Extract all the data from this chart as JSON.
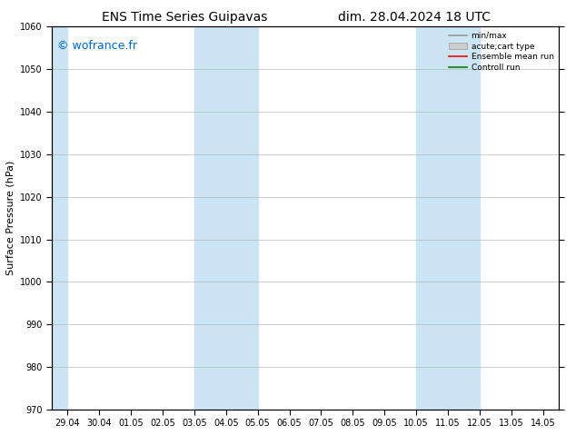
{
  "title_left": "ENS Time Series Guipavas",
  "title_right": "dim. 28.04.2024 18 UTC",
  "ylabel": "Surface Pressure (hPa)",
  "ylim": [
    970,
    1060
  ],
  "yticks": [
    970,
    980,
    990,
    1000,
    1010,
    1020,
    1030,
    1040,
    1050,
    1060
  ],
  "x_labels": [
    "29.04",
    "30.04",
    "01.05",
    "02.05",
    "03.05",
    "04.05",
    "05.05",
    "06.05",
    "07.05",
    "08.05",
    "09.05",
    "10.05",
    "11.05",
    "12.05",
    "13.05",
    "14.05"
  ],
  "x_positions": [
    0,
    1,
    2,
    3,
    4,
    5,
    6,
    7,
    8,
    9,
    10,
    11,
    12,
    13,
    14,
    15
  ],
  "shaded_bands": [
    {
      "xstart": 4.0,
      "xend": 6.0
    },
    {
      "xstart": 11.0,
      "xend": 13.0
    }
  ],
  "left_shade": {
    "xstart": -0.5,
    "xend": 0.0
  },
  "watermark": "© wofrance.fr",
  "watermark_color": "#0066cc",
  "background_color": "#ffffff",
  "plot_bg_color": "#ffffff",
  "shade_color": "#cce5f5",
  "shade_alpha": 1.0,
  "grid_color": "#aaaaaa",
  "title_fontsize": 10,
  "tick_fontsize": 7,
  "ylabel_fontsize": 8,
  "watermark_fontsize": 9
}
